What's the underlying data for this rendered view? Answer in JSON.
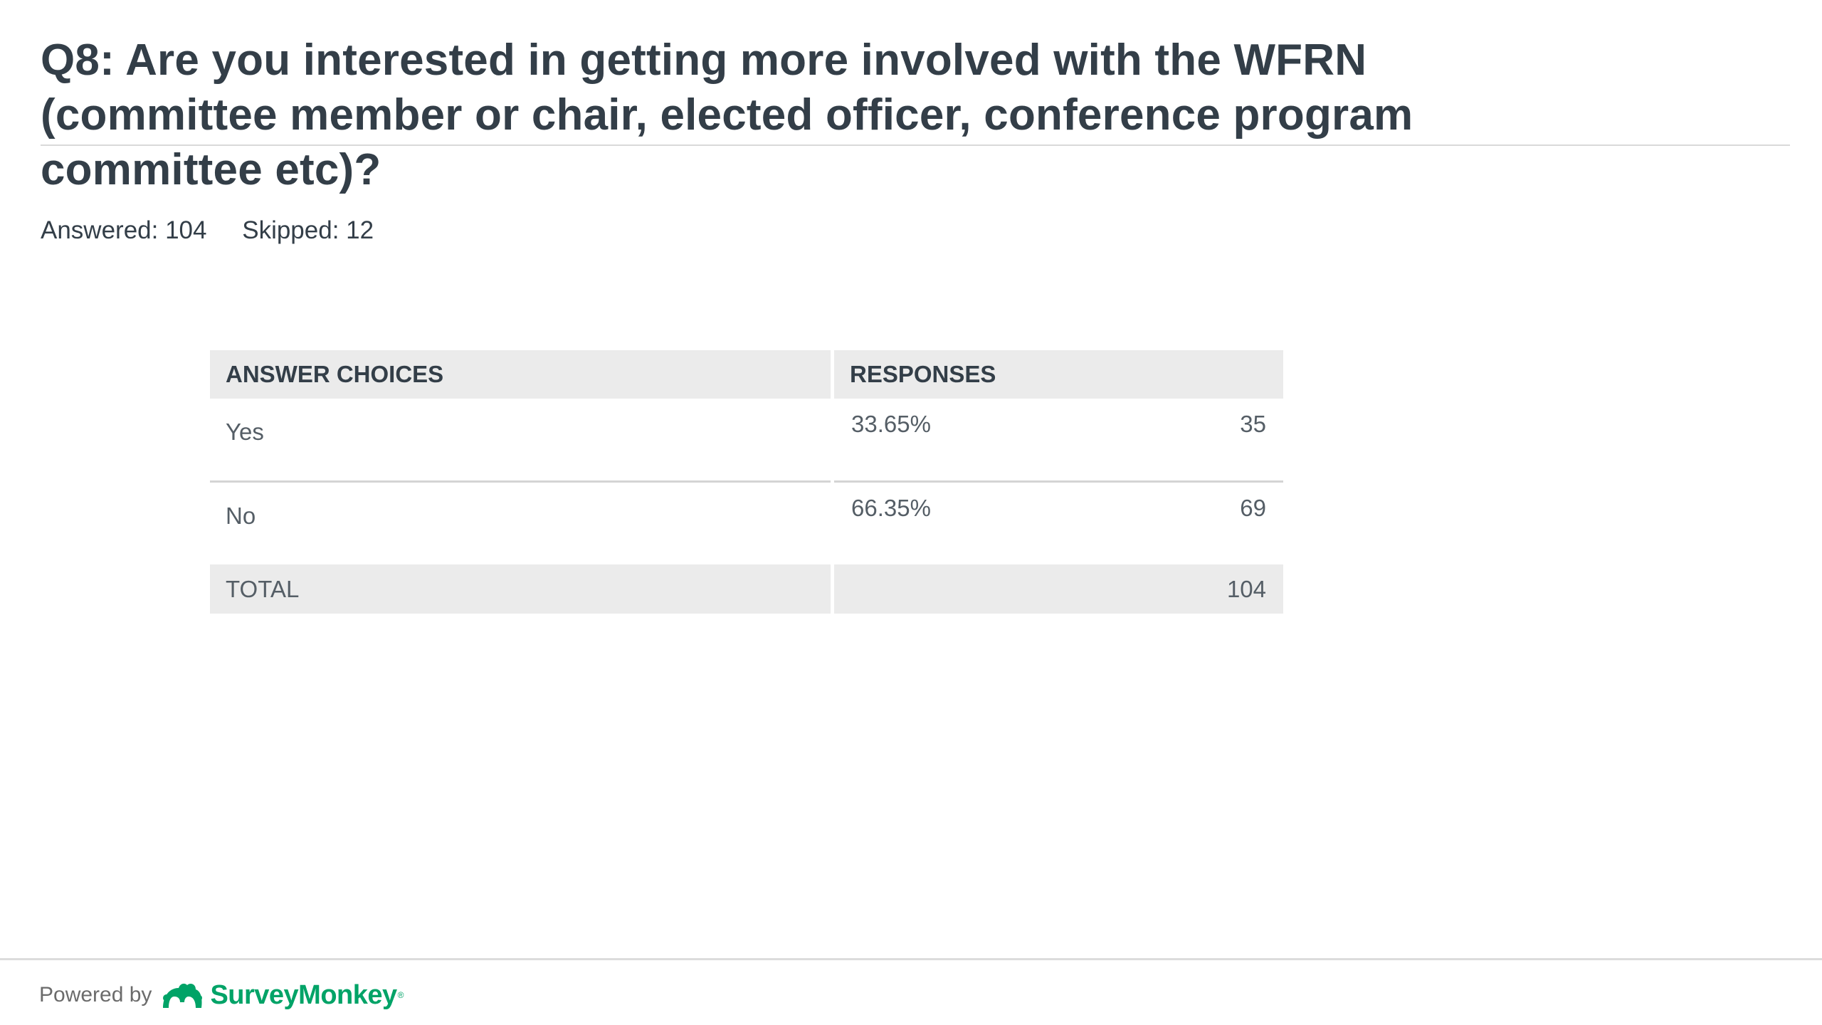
{
  "question": {
    "title": "Q8: Are you interested in getting more involved with the WFRN (committee member or chair, elected officer, conference program committee etc)?",
    "answered_label": "Answered: 104",
    "skipped_label": "Skipped: 12"
  },
  "table": {
    "headers": {
      "choices": "ANSWER CHOICES",
      "responses": "RESPONSES"
    },
    "rows": [
      {
        "choice": "Yes",
        "percent": "33.65%",
        "count": "35"
      },
      {
        "choice": "No",
        "percent": "66.35%",
        "count": "69"
      }
    ],
    "total": {
      "label": "TOTAL",
      "count": "104"
    }
  },
  "footer": {
    "powered_by": "Powered by",
    "brand": "SurveyMonkey",
    "brand_mark": "®",
    "brand_color": "#00a367",
    "icon": "surveymonkey-logo-icon"
  }
}
